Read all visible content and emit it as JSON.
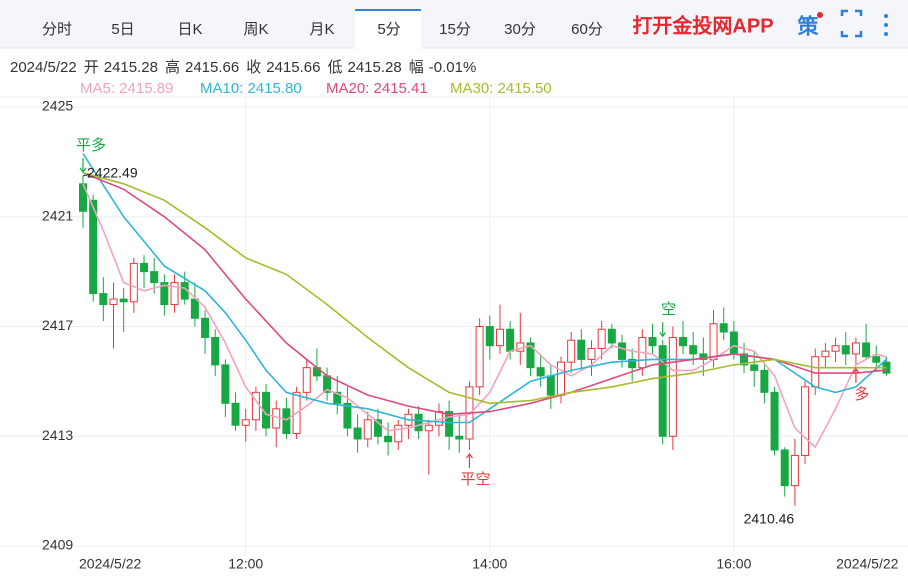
{
  "tabs": [
    "分时",
    "5日",
    "日K",
    "周K",
    "月K",
    "5分",
    "15分",
    "30分",
    "60分"
  ],
  "active_tab": 5,
  "brand": "打开金投网APP",
  "strategy_icon": "策",
  "info": {
    "date": "2024/5/22",
    "items": [
      {
        "label": "开",
        "value": "2415.28"
      },
      {
        "label": "高",
        "value": "2415.66"
      },
      {
        "label": "收",
        "value": "2415.66"
      },
      {
        "label": "低",
        "value": "2415.28"
      },
      {
        "label": "幅",
        "value": "-0.01%"
      }
    ]
  },
  "ma_legend": [
    "MA5: 2415.89",
    "MA10: 2415.80",
    "MA20: 2415.41",
    "MA30: 2415.50"
  ],
  "chart_data": {
    "type": "candlestick",
    "categories": [
      "2024/5/22",
      null,
      null,
      null,
      null,
      null,
      null,
      null,
      null,
      null,
      null,
      null,
      null,
      null,
      null,
      null,
      "12:00",
      null,
      null,
      null,
      null,
      null,
      null,
      null,
      null,
      null,
      null,
      null,
      null,
      null,
      null,
      null,
      null,
      null,
      null,
      null,
      null,
      null,
      null,
      null,
      "14:00",
      null,
      null,
      null,
      null,
      null,
      null,
      null,
      null,
      null,
      null,
      null,
      null,
      null,
      null,
      null,
      null,
      null,
      null,
      null,
      null,
      null,
      null,
      null,
      "16:00",
      null,
      null,
      null,
      null,
      null,
      null,
      null,
      null,
      null,
      null,
      null,
      null,
      null,
      null,
      "2024/5/22"
    ],
    "open": [
      2422.2,
      2421.6,
      2418.2,
      2417.8,
      2418.0,
      2417.9,
      2419.3,
      2419.0,
      2418.6,
      2417.8,
      2418.6,
      2418.0,
      2417.3,
      2416.6,
      2415.6,
      2414.2,
      2413.4,
      2413.6,
      2414.6,
      2413.3,
      2414.0,
      2413.1,
      2414.6,
      2415.5,
      2415.2,
      2414.6,
      2414.2,
      2413.3,
      2412.9,
      2413.6,
      2413.0,
      2412.8,
      2413.4,
      2413.8,
      2413.2,
      2413.4,
      2413.9,
      2413.0,
      2412.9,
      2414.8,
      2417.0,
      2416.3,
      2416.9,
      2416.1,
      2416.4,
      2415.5,
      2415.2,
      2414.5,
      2415.7,
      2416.5,
      2415.8,
      2416.2,
      2416.9,
      2416.4,
      2415.8,
      2415.5,
      2416.6,
      2416.3,
      2413.0,
      2416.6,
      2416.3,
      2416.0,
      2415.8,
      2417.1,
      2416.8,
      2416.0,
      2415.6,
      2415.4,
      2414.6,
      2412.5,
      2411.2,
      2412.3,
      2414.8,
      2415.9,
      2416.1,
      2416.3,
      2416.0,
      2416.4,
      2415.9,
      2415.7
    ],
    "high": [
      2422.49,
      2421.8,
      2418.8,
      2418.6,
      2418.4,
      2419.5,
      2419.6,
      2419.5,
      2418.9,
      2418.9,
      2419.0,
      2418.6,
      2417.6,
      2416.9,
      2415.8,
      2414.6,
      2414.0,
      2414.8,
      2414.9,
      2414.3,
      2414.4,
      2414.8,
      2415.8,
      2416.2,
      2415.5,
      2415.2,
      2414.8,
      2413.8,
      2413.9,
      2414.0,
      2413.5,
      2413.6,
      2414.0,
      2414.1,
      2413.6,
      2414.2,
      2414.3,
      2413.8,
      2415.0,
      2417.3,
      2417.4,
      2417.8,
      2417.2,
      2417.5,
      2416.6,
      2416.0,
      2415.6,
      2415.9,
      2416.8,
      2416.9,
      2416.5,
      2417.2,
      2417.1,
      2416.7,
      2416.2,
      2416.9,
      2417.1,
      2416.5,
      2417.0,
      2417.2,
      2416.8,
      2416.6,
      2417.6,
      2417.7,
      2417.2,
      2416.4,
      2416.1,
      2415.6,
      2414.8,
      2412.6,
      2412.9,
      2415.0,
      2416.2,
      2416.4,
      2416.6,
      2416.8,
      2416.6,
      2417.1,
      2416.3,
      2415.9
    ],
    "low": [
      2420.6,
      2417.9,
      2417.2,
      2416.2,
      2416.8,
      2417.5,
      2418.4,
      2418.2,
      2417.4,
      2417.5,
      2417.8,
      2417.0,
      2416.0,
      2415.2,
      2413.7,
      2413.2,
      2412.8,
      2413.2,
      2413.0,
      2412.6,
      2412.9,
      2412.9,
      2414.3,
      2415.0,
      2414.3,
      2413.8,
      2413.0,
      2412.4,
      2412.6,
      2412.7,
      2412.3,
      2412.5,
      2412.9,
      2412.9,
      2411.6,
      2413.0,
      2412.5,
      2412.4,
      2412.5,
      2414.5,
      2415.8,
      2416.0,
      2415.8,
      2415.6,
      2415.2,
      2414.8,
      2414.0,
      2414.2,
      2415.3,
      2415.4,
      2415.2,
      2415.8,
      2416.2,
      2415.5,
      2415.0,
      2415.2,
      2416.0,
      2412.7,
      2412.5,
      2416.0,
      2415.6,
      2415.2,
      2415.5,
      2416.5,
      2415.8,
      2415.3,
      2414.8,
      2414.2,
      2412.3,
      2410.8,
      2410.46,
      2412.0,
      2414.5,
      2415.5,
      2415.7,
      2415.6,
      2415.6,
      2415.8,
      2415.4,
      2415.2
    ],
    "close": [
      2421.2,
      2418.2,
      2417.8,
      2418.0,
      2417.9,
      2419.3,
      2419.0,
      2418.6,
      2417.8,
      2418.6,
      2418.0,
      2417.3,
      2416.6,
      2415.6,
      2414.2,
      2413.4,
      2413.6,
      2414.6,
      2413.3,
      2414.0,
      2413.1,
      2414.6,
      2415.5,
      2415.2,
      2414.6,
      2414.2,
      2413.3,
      2412.9,
      2413.6,
      2413.0,
      2412.8,
      2413.4,
      2413.8,
      2413.2,
      2413.4,
      2413.9,
      2413.0,
      2412.9,
      2414.8,
      2417.0,
      2416.3,
      2416.9,
      2416.1,
      2416.4,
      2415.5,
      2415.2,
      2414.5,
      2415.7,
      2416.5,
      2415.8,
      2416.2,
      2416.9,
      2416.4,
      2415.8,
      2415.5,
      2416.6,
      2416.3,
      2413.0,
      2416.6,
      2416.3,
      2416.0,
      2415.8,
      2417.1,
      2416.8,
      2416.0,
      2415.6,
      2415.4,
      2414.6,
      2412.5,
      2411.2,
      2412.3,
      2414.8,
      2415.9,
      2416.1,
      2416.3,
      2416.0,
      2416.4,
      2415.9,
      2415.7,
      2415.3
    ],
    "up_color": "#e8383d",
    "down_color": "#17a844",
    "ma": [
      {
        "color": "#f2a3bd",
        "x": [
          0,
          2,
          4,
          6,
          8,
          10,
          12,
          14,
          16,
          18,
          20,
          22,
          24,
          26,
          28,
          30,
          32,
          34,
          36,
          38,
          40,
          42,
          44,
          46,
          48,
          50,
          52,
          54,
          56,
          58,
          60,
          62,
          64,
          66,
          68,
          70,
          72,
          74,
          76,
          78,
          79
        ],
        "values": [
          2422.2,
          2420.5,
          2418.6,
          2418.3,
          2418.5,
          2418.4,
          2417.7,
          2416.4,
          2414.8,
          2413.8,
          2413.6,
          2414.1,
          2414.7,
          2414.4,
          2413.8,
          2413.2,
          2413.3,
          2413.5,
          2413.7,
          2413.8,
          2414.6,
          2416.1,
          2416.3,
          2415.6,
          2415.2,
          2415.6,
          2416.3,
          2416.1,
          2416.0,
          2415.4,
          2415.4,
          2415.8,
          2416.3,
          2416.1,
          2415.2,
          2413.3,
          2412.6,
          2414.0,
          2415.6,
          2416.0,
          2415.89
        ]
      },
      {
        "color": "#2db7d6",
        "x": [
          0,
          4,
          8,
          12,
          14,
          16,
          18,
          20,
          24,
          28,
          32,
          36,
          38,
          40,
          44,
          48,
          52,
          56,
          60,
          64,
          68,
          72,
          74,
          76,
          79
        ],
        "values": [
          2423.3,
          2421.0,
          2419.2,
          2418.3,
          2417.5,
          2416.5,
          2415.4,
          2414.6,
          2414.2,
          2414.0,
          2413.6,
          2413.5,
          2413.5,
          2414.0,
          2415.0,
          2415.4,
          2415.7,
          2415.8,
          2415.8,
          2416.0,
          2415.8,
          2414.8,
          2414.6,
          2414.8,
          2415.8
        ]
      },
      {
        "color": "#e04a7c",
        "x": [
          0,
          4,
          8,
          12,
          16,
          20,
          24,
          28,
          32,
          36,
          40,
          44,
          48,
          52,
          56,
          60,
          64,
          68,
          72,
          76,
          79
        ],
        "values": [
          2422.6,
          2422.0,
          2421.0,
          2419.8,
          2418.0,
          2416.4,
          2415.2,
          2414.5,
          2414.1,
          2413.8,
          2413.9,
          2414.2,
          2414.6,
          2415.1,
          2415.6,
          2415.8,
          2416.0,
          2415.8,
          2415.3,
          2415.3,
          2415.41
        ]
      },
      {
        "color": "#a8bb2c",
        "x": [
          0,
          4,
          8,
          12,
          16,
          20,
          24,
          28,
          32,
          36,
          40,
          44,
          48,
          52,
          56,
          60,
          64,
          68,
          72,
          76,
          79
        ],
        "values": [
          2422.6,
          2422.2,
          2421.6,
          2420.6,
          2419.5,
          2418.9,
          2417.8,
          2416.6,
          2415.5,
          2414.6,
          2414.2,
          2414.3,
          2414.6,
          2414.8,
          2415.1,
          2415.3,
          2415.6,
          2415.8,
          2415.5,
          2415.5,
          2415.5
        ]
      }
    ],
    "ylim": [
      2409,
      2425
    ],
    "yticks": [
      2409,
      2413,
      2417,
      2421,
      2425
    ],
    "grid": true,
    "signals": [
      {
        "label": "平多",
        "index": 0,
        "side": "sell"
      },
      {
        "label": "平空",
        "index": 38,
        "side": "buy"
      },
      {
        "label": "空",
        "index": 57,
        "side": "sell"
      },
      {
        "label": "多",
        "index": 76,
        "side": "buy"
      }
    ],
    "high_mark": 0,
    "low_mark": 70
  }
}
